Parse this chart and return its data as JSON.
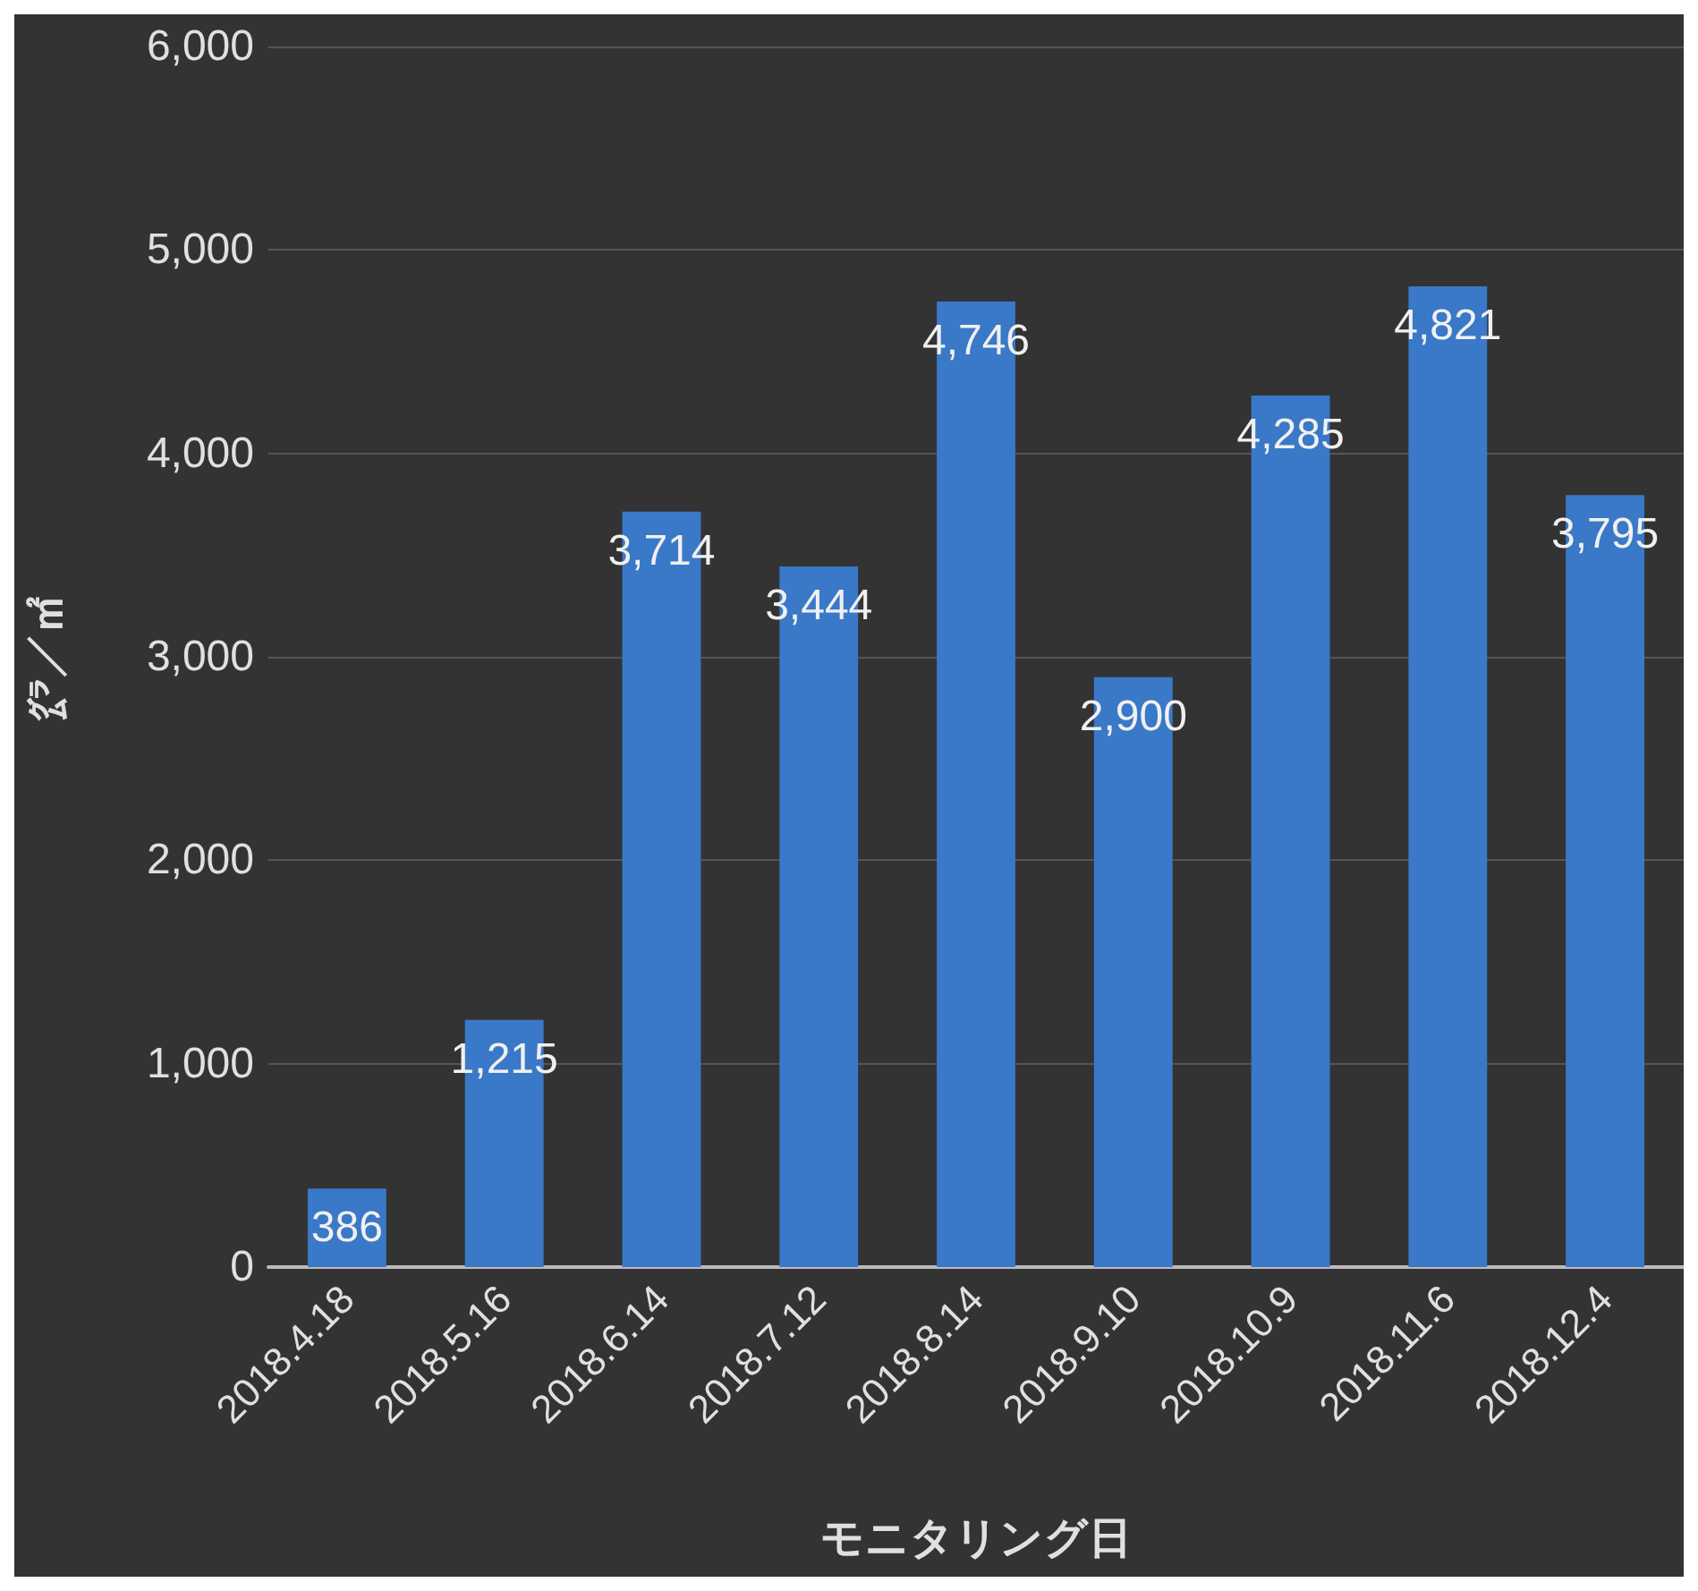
{
  "chart_data": {
    "type": "bar",
    "xlabel": "モニタリング日",
    "ylabel": "㌘／㎡",
    "categories": [
      "2018.4.18",
      "2018.5.16",
      "2018.6.14",
      "2018.7.12",
      "2018.8.14",
      "2018.9.10",
      "2018.10.9",
      "2018.11.6",
      "2018.12.4"
    ],
    "values": [
      386,
      1215,
      3714,
      3444,
      4746,
      2900,
      4285,
      4821,
      3795
    ],
    "color": "#3a78c8",
    "value_labels": [
      "386",
      "1,215",
      "3,714",
      "3,444",
      "4,746",
      "2,900",
      "4,285",
      "4,821",
      "3,795"
    ],
    "ylim": [
      0,
      6000
    ],
    "yticks": [
      0,
      {
        "value": 1000,
        "label": "1,000"
      },
      {
        "value": 2000,
        "label": "2,000"
      },
      {
        "value": 3000,
        "label": "3,000"
      },
      {
        "value": 4000,
        "label": "4,000"
      },
      {
        "value": 5000,
        "label": "5,000"
      },
      {
        "value": 6000,
        "label": "6,000"
      }
    ],
    "grid": "y"
  }
}
